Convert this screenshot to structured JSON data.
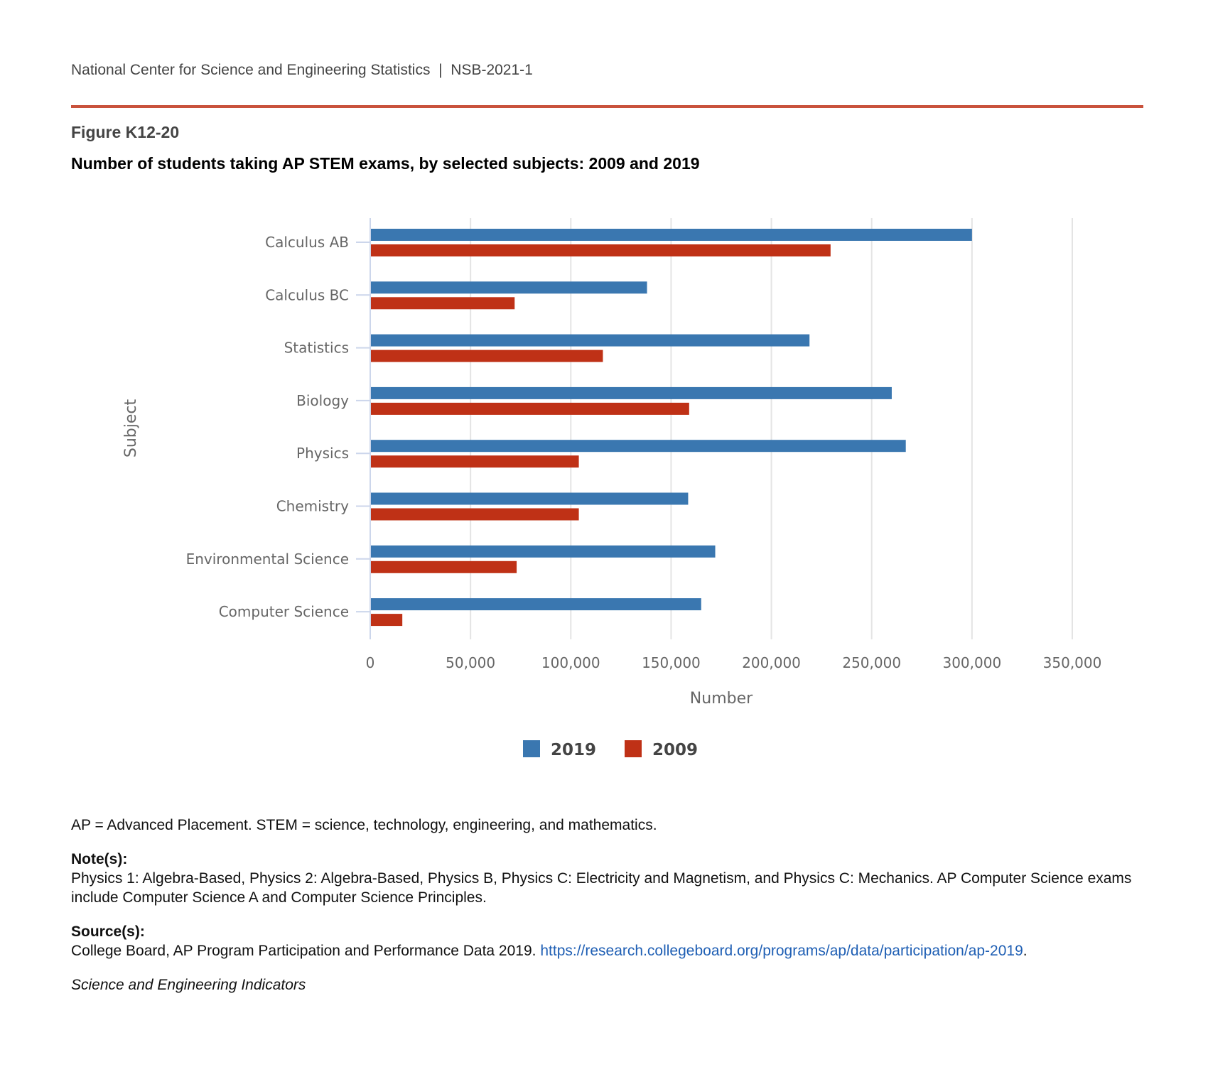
{
  "header": {
    "org": "National Center for Science and Engineering Statistics",
    "separator": "|",
    "report": "NSB-2021-1"
  },
  "figure_label": "Figure K12-20",
  "colors": {
    "series_2019": "#3a77b0",
    "series_2009": "#bf3116",
    "rule": "#c9523c"
  },
  "chart_data": {
    "type": "bar",
    "orientation": "horizontal",
    "title": "Number of students taking AP STEM exams, by selected subjects: 2009 and 2019",
    "xlabel": "Number",
    "ylabel": "Subject",
    "xlim": [
      0,
      350000
    ],
    "xticks": [
      0,
      50000,
      100000,
      150000,
      200000,
      250000,
      300000,
      350000
    ],
    "xtick_labels": [
      "0",
      "50,000",
      "100,000",
      "150,000",
      "200,000",
      "250,000",
      "300,000",
      "350,000"
    ],
    "grid": true,
    "legend_position": "bottom-center",
    "categories": [
      "Calculus AB",
      "Calculus BC",
      "Statistics",
      "Biology",
      "Physics",
      "Chemistry",
      "Environmental Science",
      "Computer Science"
    ],
    "series": [
      {
        "name": "2019",
        "values": [
          300000,
          138000,
          219000,
          260000,
          267000,
          158500,
          172000,
          165000
        ]
      },
      {
        "name": "2009",
        "values": [
          229500,
          72000,
          116000,
          159000,
          104000,
          104000,
          73000,
          16000
        ]
      }
    ]
  },
  "footnotes": {
    "abbrev": "AP = Advanced Placement. STEM = science, technology, engineering, and mathematics.",
    "notes_heading": "Note(s):",
    "notes": "Physics 1: Algebra-Based, Physics 2: Algebra-Based, Physics B, Physics C: Electricity and Magnetism, and Physics C: Mechanics. AP Computer Science exams include Computer Science A and Computer Science Principles.",
    "source_heading": "Source(s):",
    "source": "College Board, AP Program Participation and Performance Data 2019.",
    "source_link": "https://research.collegeboard.org/programs/ap/data/participation/ap-2019",
    "source_end": ".",
    "publication": "Science and Engineering Indicators"
  }
}
